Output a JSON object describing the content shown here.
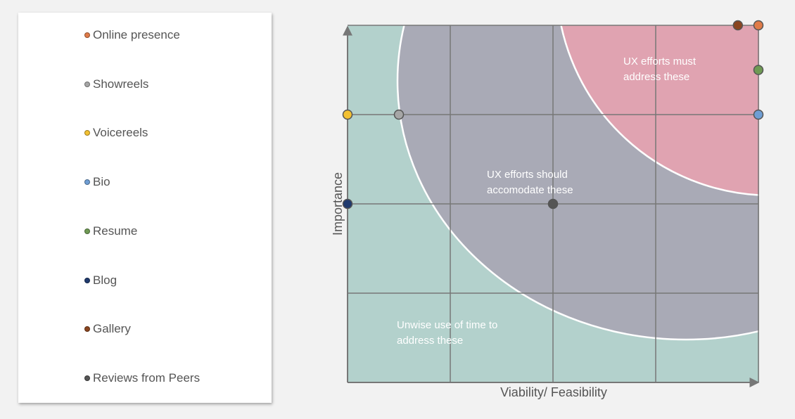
{
  "chart_data": {
    "type": "scatter",
    "xlabel": "Viability/ Feasibility",
    "ylabel": "Importance",
    "xlim": [
      0,
      4
    ],
    "ylim": [
      0,
      4
    ],
    "grid": true,
    "legend_position": "left",
    "zones": [
      {
        "label_lines": [
          "Unwise use of time to",
          "address these"
        ],
        "color": "#b3d1cc"
      },
      {
        "label_lines": [
          "UX efforts should",
          "accomodate these"
        ],
        "color": "#a9aab6"
      },
      {
        "label_lines": [
          "UX efforts must",
          "address these"
        ],
        "color": "#e0a3b1"
      }
    ],
    "series": [
      {
        "name": "Online presence",
        "color": "#e07b48",
        "x": 4.0,
        "y": 4.0
      },
      {
        "name": "Showreels",
        "color": "#a6a6a6",
        "x": 0.5,
        "y": 3.0
      },
      {
        "name": "Voicereels",
        "color": "#f3c132",
        "x": 0.0,
        "y": 3.0
      },
      {
        "name": "Bio",
        "color": "#6f9ed4",
        "x": 4.0,
        "y": 3.0
      },
      {
        "name": "Resume",
        "color": "#6f9a54",
        "x": 4.0,
        "y": 3.5
      },
      {
        "name": "Blog",
        "color": "#1f3a6e",
        "x": 0.0,
        "y": 2.0
      },
      {
        "name": "Gallery",
        "color": "#8a4520",
        "x": 3.8,
        "y": 4.0
      },
      {
        "name": "Reviews from Peers",
        "color": "#555555",
        "x": 2.0,
        "y": 2.0
      }
    ]
  }
}
